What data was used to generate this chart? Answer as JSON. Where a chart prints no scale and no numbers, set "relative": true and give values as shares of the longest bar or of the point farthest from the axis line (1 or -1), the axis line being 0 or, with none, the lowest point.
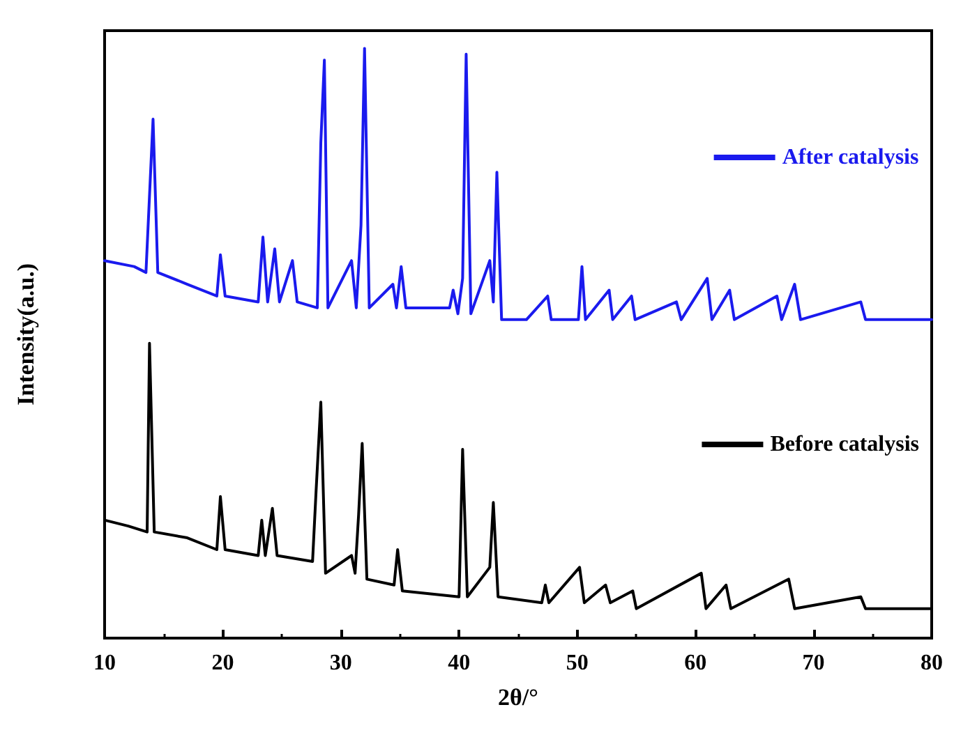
{
  "chart_data": {
    "type": "line",
    "relative": true,
    "xlabel": "2θ/°",
    "ylabel": "Intensity(a.u.)",
    "xlim": [
      10,
      80
    ],
    "xticks": [
      10,
      20,
      30,
      40,
      50,
      60,
      70,
      80
    ],
    "tick_labels": "x",
    "grid": false,
    "legend": "right",
    "marker": "none",
    "line_style": "solid",
    "series": [
      {
        "name": "After catalysis",
        "color": "#1a1aee",
        "x": [
          10,
          12.5,
          13.5,
          14.1,
          14.5,
          17,
          19.5,
          19.8,
          20.2,
          23,
          23.4,
          23.8,
          24.4,
          24.8,
          25.9,
          26.3,
          28,
          28.3,
          28.6,
          28.9,
          30.9,
          31.3,
          31.7,
          32,
          32.4,
          34.4,
          34.7,
          35.1,
          35.5,
          39.2,
          39.5,
          39.9,
          40.3,
          40.6,
          41,
          42.6,
          42.9,
          43.2,
          43.6,
          45.7,
          47.5,
          47.8,
          50.1,
          50.4,
          50.7,
          52.7,
          53,
          54.6,
          54.9,
          58.4,
          58.8,
          61,
          61.4,
          62.9,
          63.3,
          66.9,
          67.3,
          68.4,
          68.9,
          74,
          74.4,
          77,
          80
        ],
        "values": [
          0.64,
          0.63,
          0.62,
          0.88,
          0.62,
          0.6,
          0.58,
          0.65,
          0.58,
          0.57,
          0.68,
          0.57,
          0.66,
          0.57,
          0.64,
          0.57,
          0.56,
          0.84,
          0.98,
          0.56,
          0.64,
          0.56,
          0.7,
          1,
          0.56,
          0.6,
          0.56,
          0.63,
          0.56,
          0.56,
          0.59,
          0.55,
          0.61,
          0.99,
          0.55,
          0.64,
          0.57,
          0.79,
          0.54,
          0.54,
          0.58,
          0.54,
          0.54,
          0.63,
          0.54,
          0.59,
          0.54,
          0.58,
          0.54,
          0.57,
          0.54,
          0.61,
          0.54,
          0.59,
          0.54,
          0.58,
          0.54,
          0.6,
          0.54,
          0.57,
          0.54,
          0.54,
          0.54
        ]
      },
      {
        "name": "Before catalysis",
        "color": "#000000",
        "x": [
          10,
          12,
          13.6,
          13.8,
          14.2,
          17,
          19.5,
          19.8,
          20.2,
          23,
          23.3,
          23.6,
          24.2,
          24.6,
          27.6,
          27.9,
          28.3,
          28.7,
          30.9,
          31.2,
          31.5,
          31.8,
          32.2,
          34.5,
          34.8,
          35.2,
          40,
          40.3,
          40.7,
          42.6,
          42.9,
          43.3,
          47,
          47.3,
          47.6,
          50.2,
          50.6,
          52.4,
          52.8,
          54.7,
          55,
          60.5,
          60.9,
          62.6,
          63,
          67.9,
          68.4,
          74,
          74.4,
          80
        ],
        "values": [
          0.2,
          0.19,
          0.18,
          0.5,
          0.18,
          0.17,
          0.15,
          0.24,
          0.15,
          0.14,
          0.2,
          0.14,
          0.22,
          0.14,
          0.13,
          0.25,
          0.4,
          0.11,
          0.14,
          0.11,
          0.21,
          0.33,
          0.1,
          0.09,
          0.15,
          0.08,
          0.07,
          0.32,
          0.07,
          0.12,
          0.23,
          0.07,
          0.06,
          0.09,
          0.06,
          0.12,
          0.06,
          0.09,
          0.06,
          0.08,
          0.05,
          0.11,
          0.05,
          0.09,
          0.05,
          0.1,
          0.05,
          0.07,
          0.05,
          0.05
        ]
      }
    ]
  }
}
